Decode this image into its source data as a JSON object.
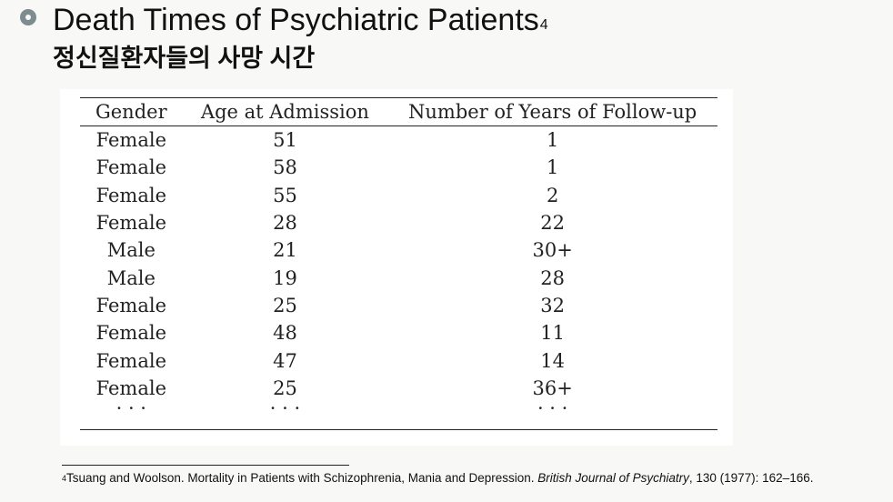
{
  "header": {
    "title": "Death Times of Psychiatric Patients",
    "title_footnote_mark": "4",
    "subtitle": "정신질환자들의 사망 시간",
    "bullet_icon": "circle-bullet-icon"
  },
  "table": {
    "columns": [
      "Gender",
      "Age at Admission",
      "Number of Years of Follow-up"
    ],
    "rows": [
      [
        "Female",
        "51",
        "1"
      ],
      [
        "Female",
        "58",
        "1"
      ],
      [
        "Female",
        "55",
        "2"
      ],
      [
        "Female",
        "28",
        "22"
      ],
      [
        "Male",
        "21",
        "30+"
      ],
      [
        "Male",
        "19",
        "28"
      ],
      [
        "Female",
        "25",
        "32"
      ],
      [
        "Female",
        "48",
        "11"
      ],
      [
        "Female",
        "47",
        "14"
      ],
      [
        "Female",
        "25",
        "36+"
      ],
      [
        "· · ·",
        "· · ·",
        "· · ·"
      ]
    ]
  },
  "footnote": {
    "mark": "4",
    "text": "Tsuang and Woolson. Mortality in Patients with Schizophrenia, Mania and Depression. ",
    "journal": "British Journal of Psychiatry",
    "rest": ", 130 (1977): 162–166."
  },
  "colors": {
    "background": "#f8f8f6",
    "panel": "#ffffff",
    "bullet": "#7d8c8f",
    "text": "#111111"
  }
}
